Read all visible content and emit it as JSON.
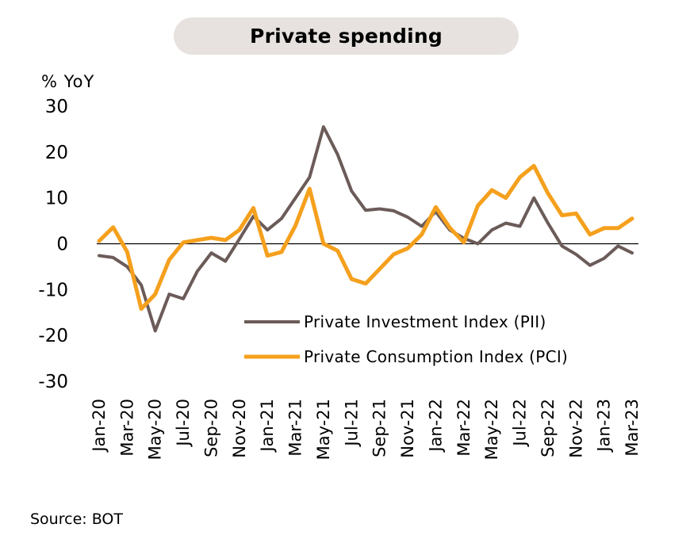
{
  "header": {
    "title": "Private spending"
  },
  "footer": {
    "source": "Source: BOT"
  },
  "colors": {
    "pii": "#6b5b59",
    "pci": "#f5a01d",
    "axis": "#000000",
    "pill_bg": "#e7e2df"
  },
  "chart_data": {
    "type": "line",
    "title": "Private spending",
    "ylabel": "% YoY",
    "ylim": [
      -30,
      30
    ],
    "yticks": [
      30,
      20,
      10,
      0,
      -10,
      -20,
      -30
    ],
    "ytick_labels": [
      "30",
      "20",
      "10",
      "0",
      "-10",
      "-20",
      "-30"
    ],
    "x": [
      "Jan-20",
      "Feb-20",
      "Mar-20",
      "Apr-20",
      "May-20",
      "Jun-20",
      "Jul-20",
      "Aug-20",
      "Sep-20",
      "Oct-20",
      "Nov-20",
      "Dec-20",
      "Jan-21",
      "Feb-21",
      "Mar-21",
      "Apr-21",
      "May-21",
      "Jun-21",
      "Jul-21",
      "Aug-21",
      "Sep-21",
      "Oct-21",
      "Nov-21",
      "Dec-21",
      "Jan-22",
      "Feb-22",
      "Mar-22",
      "Apr-22",
      "May-22",
      "Jun-22",
      "Jul-22",
      "Aug-22",
      "Sep-22",
      "Oct-22",
      "Nov-22",
      "Dec-22",
      "Jan-23",
      "Feb-23",
      "Mar-23"
    ],
    "xtick_labels": [
      "Jan-20",
      "Mar-20",
      "May-20",
      "Jul-20",
      "Sep-20",
      "Nov-20",
      "Jan-21",
      "Mar-21",
      "May-21",
      "Jul-21",
      "Sep-21",
      "Nov-21",
      "Jan-22",
      "Mar-22",
      "May-22",
      "Jul-22",
      "Sep-22",
      "Nov-22",
      "Jan-23",
      "Mar-23"
    ],
    "legend_position": "center-right",
    "series": [
      {
        "name": "Private Investment Index (PII)",
        "values": [
          -2.6,
          -3.0,
          -5.0,
          -9.0,
          -19.0,
          -11.0,
          -12.0,
          -6.0,
          -2.0,
          -3.8,
          1.0,
          6.0,
          3.0,
          5.5,
          10.0,
          14.5,
          25.5,
          19.5,
          11.5,
          7.3,
          7.6,
          7.2,
          5.8,
          3.8,
          7.0,
          3.0,
          1.2,
          0.0,
          3.0,
          4.5,
          3.8,
          10.0,
          4.5,
          -0.5,
          -2.3,
          -4.7,
          -3.2,
          -0.5,
          -2.0
        ]
      },
      {
        "name": "Private Consumption Index (PCI)",
        "values": [
          0.6,
          3.6,
          -1.8,
          -14.2,
          -11.0,
          -3.5,
          0.3,
          0.8,
          1.3,
          0.8,
          3.0,
          7.8,
          -2.6,
          -1.8,
          4.0,
          12.0,
          0.0,
          -1.5,
          -7.7,
          -8.7,
          -5.5,
          -2.3,
          -1.0,
          2.0,
          8.0,
          3.5,
          0.3,
          8.3,
          11.7,
          10.0,
          14.5,
          17.0,
          11.0,
          6.2,
          6.6,
          2.0,
          3.4,
          3.4,
          5.5
        ]
      }
    ]
  }
}
